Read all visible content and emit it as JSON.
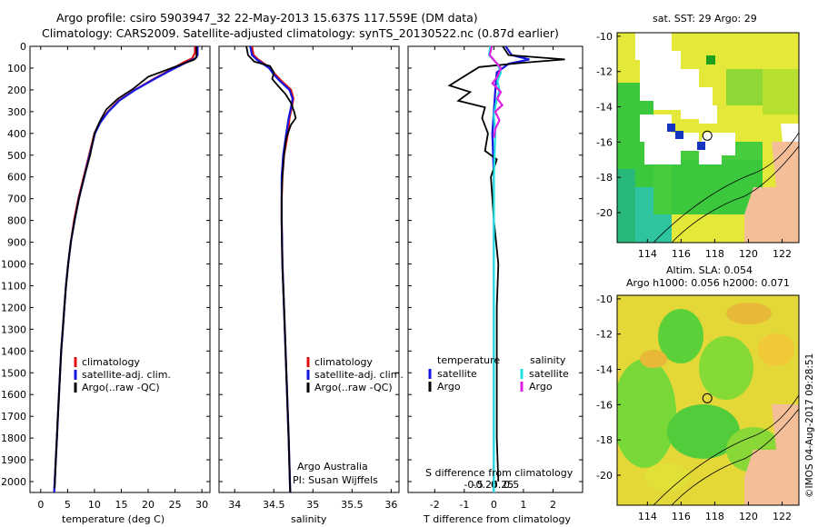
{
  "header": {
    "line1": "Argo profile: csiro 5903947_32 22-May-2013 15.637S 117.559E (DM data)",
    "line2": "Climatology: CARS2009. Satellite-adjusted climatology: synTS_20130522.nc (0.87d earlier)"
  },
  "colors": {
    "climatology": "#e01010",
    "satellite": "#1515e0",
    "argo": "#000000",
    "sat_salinity": "#20e0e0",
    "argo_salinity": "#e020e0",
    "land": "#f4bf98",
    "ocean_green": "#3cc83c",
    "ocean_yellow": "#e8e838"
  },
  "depth_axis": {
    "min": 0,
    "max": 2050,
    "ticks": [
      0,
      100,
      200,
      300,
      400,
      500,
      600,
      700,
      800,
      900,
      1000,
      1100,
      1200,
      1300,
      1400,
      1500,
      1600,
      1700,
      1800,
      1900,
      2000
    ]
  },
  "chart_data": [
    {
      "type": "line",
      "panel": "temperature",
      "xlabel": "temperature (deg C)",
      "xlim": [
        -2,
        31.5
      ],
      "xticks": [
        0,
        5,
        10,
        15,
        20,
        25,
        30
      ],
      "ylabel": "depth",
      "ylim": [
        0,
        2050
      ],
      "series": [
        {
          "name": "climatology",
          "color": "#e01010",
          "points": [
            [
              28.7,
              0
            ],
            [
              28.7,
              30
            ],
            [
              28.2,
              55
            ],
            [
              26.5,
              75
            ],
            [
              24,
              110
            ],
            [
              21,
              150
            ],
            [
              17.5,
              200
            ],
            [
              14.5,
              250
            ],
            [
              12.5,
              300
            ],
            [
              11,
              350
            ],
            [
              10,
              400
            ],
            [
              9,
              500
            ],
            [
              8,
              600
            ],
            [
              7,
              700
            ],
            [
              6.2,
              800
            ],
            [
              5.6,
              900
            ],
            [
              5.1,
              1000
            ],
            [
              4.7,
              1100
            ],
            [
              4.4,
              1200
            ],
            [
              4.1,
              1300
            ],
            [
              3.8,
              1400
            ],
            [
              3.6,
              1500
            ],
            [
              3.4,
              1600
            ],
            [
              3.2,
              1700
            ],
            [
              3.0,
              1800
            ],
            [
              2.8,
              1900
            ],
            [
              2.5,
              2050
            ]
          ]
        },
        {
          "name": "satellite-adj. clim.",
          "color": "#1515e0",
          "points": [
            [
              29.2,
              0
            ],
            [
              29.2,
              40
            ],
            [
              28.8,
              55
            ],
            [
              27,
              75
            ],
            [
              24.2,
              110
            ],
            [
              21.2,
              150
            ],
            [
              17.6,
              200
            ],
            [
              14.6,
              250
            ],
            [
              12.6,
              300
            ],
            [
              11.1,
              350
            ],
            [
              10.1,
              400
            ],
            [
              9.1,
              500
            ],
            [
              8.1,
              600
            ],
            [
              7.1,
              700
            ],
            [
              6.3,
              800
            ],
            [
              5.6,
              900
            ],
            [
              5.1,
              1000
            ],
            [
              4.7,
              1100
            ],
            [
              4.4,
              1200
            ],
            [
              4.1,
              1300
            ],
            [
              3.8,
              1400
            ],
            [
              3.6,
              1500
            ],
            [
              3.4,
              1600
            ],
            [
              3.2,
              1700
            ],
            [
              3.0,
              1800
            ],
            [
              2.8,
              1900
            ],
            [
              2.5,
              2050
            ]
          ]
        },
        {
          "name": "Argo(..raw -QC)",
          "color": "#000000",
          "points": [
            [
              29,
              0
            ],
            [
              29,
              50
            ],
            [
              28.5,
              62
            ],
            [
              26.5,
              80
            ],
            [
              23.8,
              105
            ],
            [
              20,
              140
            ],
            [
              17.2,
              195
            ],
            [
              14.4,
              240
            ],
            [
              12.2,
              290
            ],
            [
              11,
              345
            ],
            [
              10,
              400
            ],
            [
              9.2,
              500
            ],
            [
              8.1,
              600
            ],
            [
              7.1,
              700
            ],
            [
              6.3,
              800
            ],
            [
              5.6,
              900
            ],
            [
              5.1,
              1000
            ],
            [
              4.7,
              1100
            ],
            [
              4.4,
              1200
            ],
            [
              4.1,
              1300
            ],
            [
              3.8,
              1400
            ],
            [
              3.6,
              1500
            ],
            [
              3.4,
              1600
            ],
            [
              3.2,
              1700
            ],
            [
              3.0,
              1800
            ],
            [
              2.8,
              1900
            ],
            [
              2.6,
              2030
            ]
          ]
        }
      ],
      "legend": [
        "climatology",
        "satellite-adj. clim.",
        "Argo(..raw -QC)"
      ]
    },
    {
      "type": "line",
      "panel": "salinity",
      "xlabel": "salinity",
      "xlim": [
        33.8,
        36.1
      ],
      "xticks": [
        34,
        34.5,
        35,
        35.5,
        36
      ],
      "ylabel": "depth",
      "ylim": [
        0,
        2050
      ],
      "series": [
        {
          "name": "climatology",
          "color": "#e01010",
          "points": [
            [
              34.22,
              0
            ],
            [
              34.24,
              40
            ],
            [
              34.3,
              60
            ],
            [
              34.38,
              80
            ],
            [
              34.45,
              100
            ],
            [
              34.52,
              130
            ],
            [
              34.6,
              160
            ],
            [
              34.72,
              200
            ],
            [
              34.75,
              240
            ],
            [
              34.73,
              280
            ],
            [
              34.7,
              330
            ],
            [
              34.68,
              400
            ],
            [
              34.63,
              500
            ],
            [
              34.61,
              600
            ],
            [
              34.6,
              700
            ],
            [
              34.6,
              800
            ],
            [
              34.61,
              1000
            ],
            [
              34.63,
              1200
            ],
            [
              34.65,
              1400
            ],
            [
              34.67,
              1600
            ],
            [
              34.69,
              1800
            ],
            [
              34.71,
              2050
            ]
          ]
        },
        {
          "name": "satellite-adj. clim.",
          "color": "#1515e0",
          "points": [
            [
              34.2,
              0
            ],
            [
              34.22,
              40
            ],
            [
              34.28,
              60
            ],
            [
              34.36,
              80
            ],
            [
              34.44,
              100
            ],
            [
              34.5,
              130
            ],
            [
              34.58,
              160
            ],
            [
              34.7,
              200
            ],
            [
              34.74,
              240
            ],
            [
              34.72,
              280
            ],
            [
              34.69,
              330
            ],
            [
              34.66,
              400
            ],
            [
              34.62,
              500
            ],
            [
              34.6,
              600
            ],
            [
              34.6,
              700
            ],
            [
              34.6,
              800
            ],
            [
              34.61,
              1000
            ],
            [
              34.63,
              1200
            ],
            [
              34.65,
              1400
            ],
            [
              34.67,
              1600
            ],
            [
              34.69,
              1800
            ],
            [
              34.71,
              2050
            ]
          ]
        },
        {
          "name": "Argo(..raw -QC)",
          "color": "#000000",
          "points": [
            [
              34.15,
              0
            ],
            [
              34.17,
              40
            ],
            [
              34.25,
              70
            ],
            [
              34.45,
              90
            ],
            [
              34.5,
              120
            ],
            [
              34.48,
              150
            ],
            [
              34.55,
              180
            ],
            [
              34.65,
              220
            ],
            [
              34.72,
              260
            ],
            [
              34.76,
              300
            ],
            [
              34.78,
              330
            ],
            [
              34.72,
              360
            ],
            [
              34.66,
              420
            ],
            [
              34.63,
              500
            ],
            [
              34.61,
              600
            ],
            [
              34.6,
              700
            ],
            [
              34.6,
              800
            ],
            [
              34.61,
              1000
            ],
            [
              34.63,
              1200
            ],
            [
              34.65,
              1400
            ],
            [
              34.67,
              1600
            ],
            [
              34.69,
              1800
            ],
            [
              34.71,
              2050
            ]
          ]
        }
      ],
      "legend": [
        "climatology",
        "satellite-adj. clim.",
        "Argo(..raw -QC)"
      ],
      "annotation": [
        "Argo Australia",
        "PI: Susan Wijffels"
      ]
    },
    {
      "type": "line",
      "panel": "difference",
      "xlabel": "T difference from climatology",
      "xlim": [
        -2.9,
        3
      ],
      "xticks": [
        -2,
        -1,
        0,
        1,
        2
      ],
      "x2label": "S difference from climatology",
      "x2ticks": [
        -0.5,
        -0.25,
        0,
        0.25,
        0.5
      ],
      "ylabel": "depth",
      "ylim": [
        0,
        2050
      ],
      "series": [
        {
          "name": "temperature satellite",
          "color": "#1515e0",
          "points": [
            [
              0.4,
              0
            ],
            [
              0.6,
              40
            ],
            [
              1.2,
              60
            ],
            [
              0.5,
              80
            ],
            [
              0.1,
              120
            ],
            [
              0.05,
              200
            ],
            [
              0,
              300
            ],
            [
              -0.05,
              400
            ],
            [
              0,
              600
            ],
            [
              0,
              800
            ],
            [
              0,
              1000
            ],
            [
              0,
              1500
            ],
            [
              0,
              2050
            ]
          ]
        },
        {
          "name": "temperature Argo",
          "color": "#000000",
          "points": [
            [
              0.3,
              0
            ],
            [
              0.5,
              40
            ],
            [
              2.4,
              60
            ],
            [
              1.0,
              75
            ],
            [
              -0.5,
              95
            ],
            [
              -1.5,
              180
            ],
            [
              -0.8,
              210
            ],
            [
              -1.2,
              250
            ],
            [
              -0.3,
              280
            ],
            [
              -0.4,
              330
            ],
            [
              -0.2,
              400
            ],
            [
              -0.3,
              480
            ],
            [
              0.1,
              520
            ],
            [
              -0.1,
              600
            ],
            [
              0,
              800
            ],
            [
              0.15,
              1000
            ],
            [
              0.1,
              1200
            ],
            [
              0.1,
              1500
            ],
            [
              0.1,
              1800
            ],
            [
              0.15,
              2000
            ]
          ]
        },
        {
          "name": "salinity satellite",
          "color": "#20e0e0",
          "points": [
            [
              -0.05,
              0
            ],
            [
              -0.07,
              40
            ],
            [
              0.05,
              80
            ],
            [
              0.1,
              120
            ],
            [
              0.05,
              160
            ],
            [
              0.08,
              200
            ],
            [
              0.03,
              260
            ],
            [
              0,
              320
            ],
            [
              0.02,
              400
            ],
            [
              0,
              600
            ],
            [
              0,
              800
            ],
            [
              0,
              1200
            ],
            [
              0,
              1600
            ],
            [
              0,
              2050
            ]
          ]
        },
        {
          "name": "salinity Argo",
          "color": "#e020e0",
          "points": [
            [
              -0.03,
              0
            ],
            [
              -0.06,
              40
            ],
            [
              0.02,
              70
            ],
            [
              0.1,
              100
            ],
            [
              0.05,
              140
            ],
            [
              -0.02,
              170
            ],
            [
              0.1,
              210
            ],
            [
              0.05,
              240
            ],
            [
              0.12,
              270
            ],
            [
              0.02,
              300
            ],
            [
              0.08,
              340
            ],
            [
              0.02,
              380
            ],
            [
              0,
              420
            ]
          ]
        }
      ],
      "legend_temperature": {
        "title": "temperature",
        "items": [
          "satellite",
          "Argo"
        ]
      },
      "legend_salinity": {
        "title": "salinity",
        "items": [
          "satellite",
          "Argo"
        ]
      }
    },
    {
      "type": "heatmap",
      "panel": "sst-map",
      "title": "sat. SST: 29 Argo: 29",
      "xlim": [
        112.2,
        123
      ],
      "xticks": [
        114,
        116,
        118,
        120,
        122
      ],
      "ylim": [
        -21.7,
        -9.8
      ],
      "yticks": [
        -10,
        -12,
        -14,
        -16,
        -18,
        -20
      ],
      "marker": {
        "lon": 117.559,
        "lat": -15.637
      }
    },
    {
      "type": "heatmap",
      "panel": "sla-map",
      "title": "Altim. SLA: 0.054",
      "subtitle": "Argo h1000: 0.056 h2000: 0.071",
      "xlim": [
        112.2,
        123
      ],
      "xticks": [
        114,
        116,
        118,
        120,
        122
      ],
      "ylim": [
        -21.7,
        -9.8
      ],
      "yticks": [
        -10,
        -12,
        -14,
        -16,
        -18,
        -20
      ],
      "marker": {
        "lon": 117.559,
        "lat": -15.637
      }
    }
  ],
  "footer": {
    "credit": "©IMOS 04-Aug-2017 09:28:51"
  }
}
